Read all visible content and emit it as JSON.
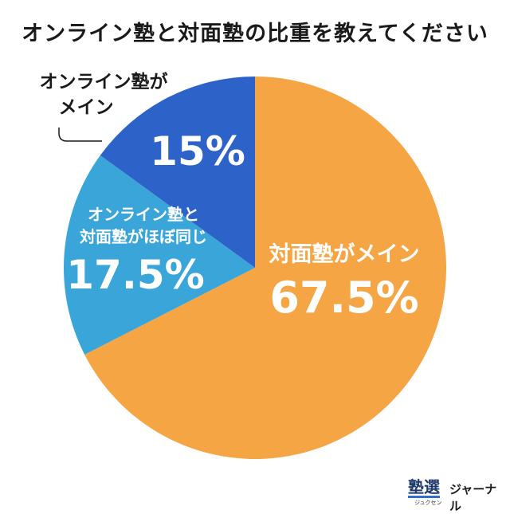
{
  "title": "オンライン塾と対面塾の比重を教えてください",
  "colors": {
    "face_to_face": "#f6a544",
    "balanced": "#3aa5d8",
    "online": "#2d63c8",
    "label_light": "#ffffff",
    "label_dark": "#1a1a1a"
  },
  "chart_data": {
    "type": "pie",
    "title": "オンライン塾と対面塾の比重を教えてください",
    "start_angle_deg": 0,
    "direction": "clockwise",
    "slices": [
      {
        "label_line1": "対面塾がメイン",
        "label_line2": "",
        "value": 67.5,
        "value_label": "67.5%",
        "color": "#f6a544"
      },
      {
        "label_line1": "オンライン塾と",
        "label_line2": "対面塾がほぼ同じ",
        "value": 17.5,
        "value_label": "17.5%",
        "color": "#3aa5d8"
      },
      {
        "label_line1": "オンライン塾が",
        "label_line2": "メイン",
        "value": 15,
        "value_label": "15%",
        "color": "#2d63c8"
      }
    ]
  },
  "logo": {
    "main": "塾選",
    "sub": "ジュクセン",
    "tail": "ジャーナル"
  }
}
